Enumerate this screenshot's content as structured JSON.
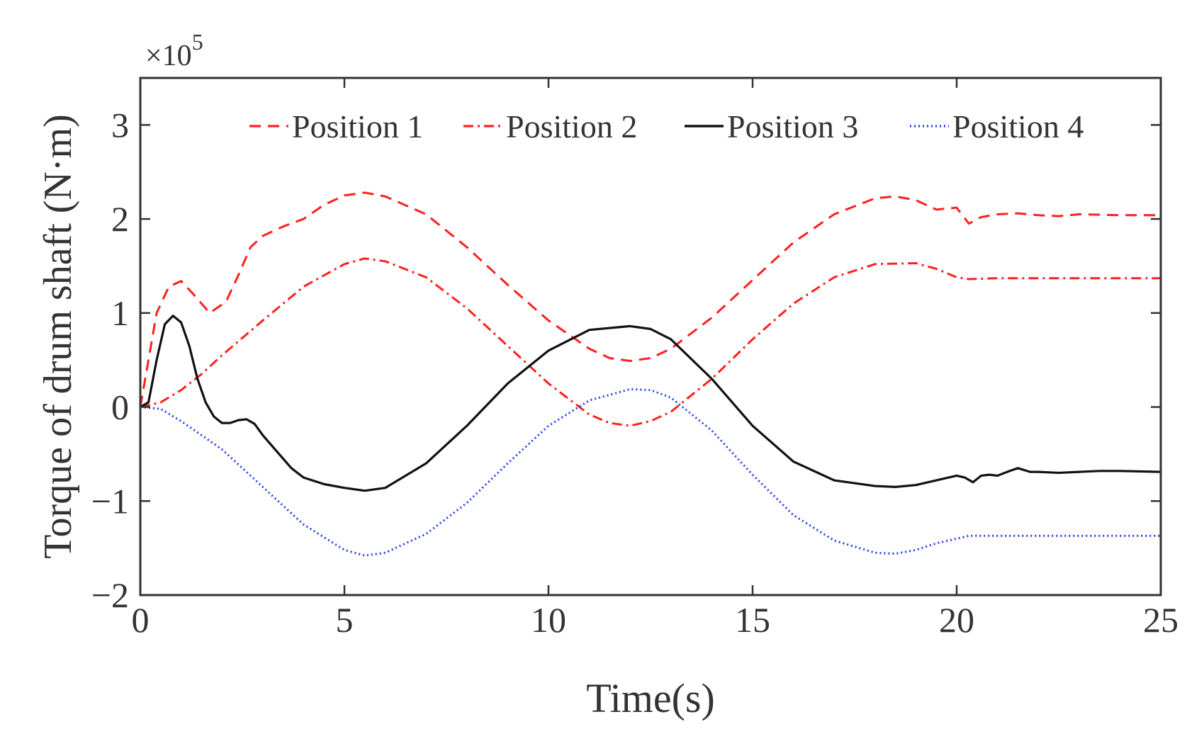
{
  "chart_data": {
    "type": "line",
    "title": "",
    "xlabel": "Time(s)",
    "ylabel": "Torque of drum shaft (N·m)",
    "y_exponent_label": "×10",
    "y_exponent_power": "5",
    "xlim": [
      0,
      25
    ],
    "ylim": [
      -2,
      3.5
    ],
    "xticks": [
      0,
      5,
      10,
      15,
      20,
      25
    ],
    "yticks": [
      -2,
      -1,
      0,
      1,
      2,
      3
    ],
    "xtick_labels": [
      "0",
      "5",
      "10",
      "15",
      "20",
      "25"
    ],
    "ytick_labels": [
      "−2",
      "−1",
      "0",
      "1",
      "2",
      "3"
    ],
    "grid": false,
    "legend_position": "top",
    "series": [
      {
        "name": "Position 1",
        "style": "dashed",
        "color": "#ff2020",
        "x": [
          0,
          0.2,
          0.4,
          0.7,
          1.0,
          1.3,
          1.7,
          2.1,
          2.4,
          2.7,
          3.0,
          3.5,
          4.0,
          4.5,
          5.0,
          5.5,
          6.0,
          7.0,
          8.0,
          9.0,
          10.0,
          11.0,
          11.5,
          12.0,
          12.5,
          13.0,
          14.0,
          15.0,
          16.0,
          17.0,
          18.0,
          18.5,
          19.0,
          19.5,
          20.0,
          20.3,
          20.6,
          21.0,
          21.5,
          22.0,
          22.5,
          23.0,
          24.0,
          25.0
        ],
        "values": [
          0,
          0.5,
          1.0,
          1.28,
          1.34,
          1.2,
          1.0,
          1.12,
          1.4,
          1.7,
          1.82,
          1.92,
          2.0,
          2.15,
          2.25,
          2.28,
          2.24,
          2.05,
          1.7,
          1.3,
          0.92,
          0.62,
          0.52,
          0.49,
          0.52,
          0.62,
          0.95,
          1.35,
          1.75,
          2.05,
          2.22,
          2.24,
          2.2,
          2.1,
          2.12,
          1.95,
          2.02,
          2.05,
          2.06,
          2.04,
          2.03,
          2.05,
          2.04,
          2.04
        ]
      },
      {
        "name": "Position 2",
        "style": "dashdot",
        "color": "#ff2020",
        "x": [
          0,
          0.5,
          1.0,
          1.5,
          2.0,
          3.0,
          4.0,
          5.0,
          5.5,
          6.0,
          7.0,
          8.0,
          9.0,
          10.0,
          11.0,
          11.5,
          12.0,
          12.5,
          13.0,
          14.0,
          15.0,
          16.0,
          17.0,
          18.0,
          19.0,
          19.5,
          20.0,
          20.3,
          21.0,
          22.0,
          23.0,
          24.0,
          25.0
        ],
        "values": [
          0,
          0.05,
          0.18,
          0.35,
          0.55,
          0.92,
          1.28,
          1.52,
          1.58,
          1.55,
          1.38,
          1.05,
          0.65,
          0.25,
          -0.08,
          -0.17,
          -0.2,
          -0.15,
          -0.05,
          0.3,
          0.72,
          1.1,
          1.38,
          1.52,
          1.53,
          1.47,
          1.38,
          1.36,
          1.37,
          1.37,
          1.37,
          1.37,
          1.37
        ]
      },
      {
        "name": "Position 3",
        "style": "solid",
        "color": "#111111",
        "x": [
          0,
          0.2,
          0.4,
          0.6,
          0.8,
          1.0,
          1.2,
          1.4,
          1.6,
          1.8,
          2.0,
          2.2,
          2.4,
          2.6,
          2.8,
          3.0,
          3.3,
          3.7,
          4.0,
          4.5,
          5.0,
          5.5,
          6.0,
          7.0,
          8.0,
          9.0,
          10.0,
          11.0,
          12.0,
          12.5,
          13.0,
          14.0,
          15.0,
          16.0,
          17.0,
          18.0,
          18.5,
          19.0,
          19.5,
          20.0,
          20.2,
          20.4,
          20.6,
          20.8,
          21.0,
          21.3,
          21.5,
          21.8,
          22.0,
          22.5,
          23.0,
          23.5,
          24.0,
          25.0
        ],
        "values": [
          0,
          0.05,
          0.5,
          0.88,
          0.97,
          0.9,
          0.65,
          0.3,
          0.05,
          -0.1,
          -0.17,
          -0.17,
          -0.14,
          -0.13,
          -0.18,
          -0.3,
          -0.45,
          -0.65,
          -0.75,
          -0.82,
          -0.86,
          -0.89,
          -0.86,
          -0.6,
          -0.2,
          0.25,
          0.6,
          0.82,
          0.86,
          0.83,
          0.72,
          0.3,
          -0.2,
          -0.58,
          -0.78,
          -0.84,
          -0.85,
          -0.83,
          -0.78,
          -0.73,
          -0.75,
          -0.8,
          -0.73,
          -0.72,
          -0.73,
          -0.68,
          -0.65,
          -0.69,
          -0.69,
          -0.7,
          -0.69,
          -0.68,
          -0.68,
          -0.69
        ]
      },
      {
        "name": "Position 4",
        "style": "dotted",
        "color": "#1f3ff0",
        "x": [
          0,
          0.5,
          1.0,
          2.0,
          3.0,
          4.0,
          5.0,
          5.5,
          6.0,
          7.0,
          8.0,
          9.0,
          10.0,
          11.0,
          12.0,
          12.5,
          13.0,
          14.0,
          15.0,
          16.0,
          17.0,
          18.0,
          18.5,
          19.0,
          19.5,
          20.0,
          20.3,
          21.0,
          22.0,
          23.0,
          24.0,
          25.0
        ],
        "values": [
          0,
          -0.02,
          -0.15,
          -0.45,
          -0.85,
          -1.25,
          -1.52,
          -1.58,
          -1.55,
          -1.35,
          -1.02,
          -0.6,
          -0.2,
          0.07,
          0.19,
          0.18,
          0.1,
          -0.25,
          -0.72,
          -1.15,
          -1.42,
          -1.55,
          -1.56,
          -1.52,
          -1.45,
          -1.4,
          -1.37,
          -1.37,
          -1.37,
          -1.37,
          -1.37,
          -1.37
        ]
      }
    ]
  }
}
